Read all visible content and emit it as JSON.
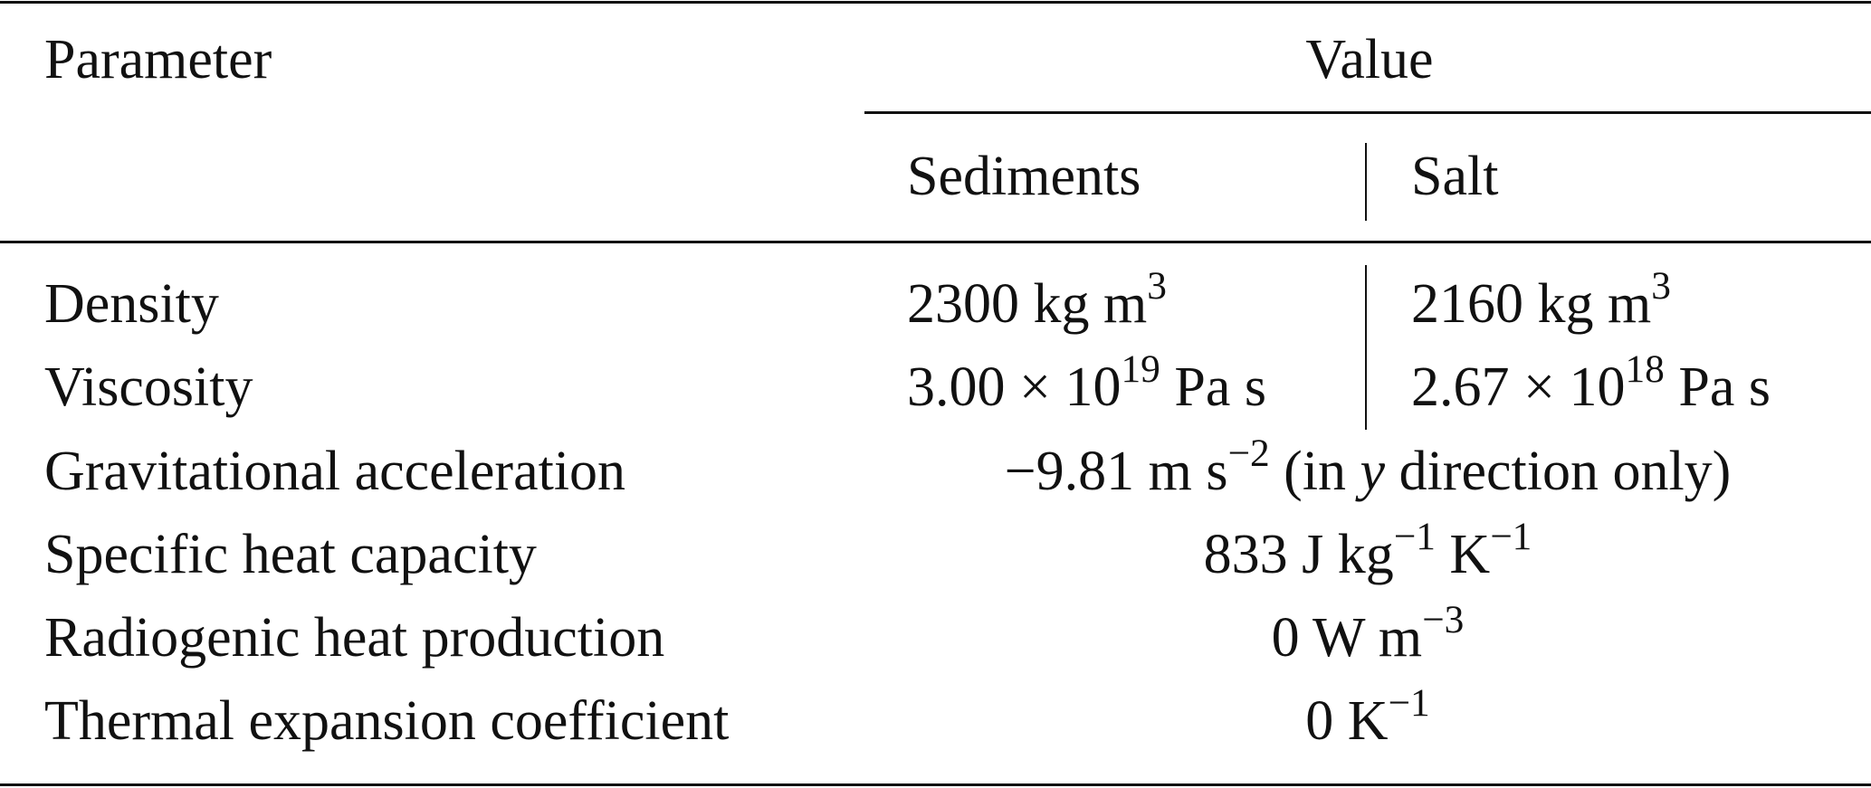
{
  "header": {
    "parameter": "Parameter",
    "value": "Value",
    "sediments": "Sediments",
    "salt": "Salt"
  },
  "rows": [
    {
      "parameter": "Density",
      "sediments": [
        {
          "t": "2300 kg m"
        },
        {
          "sup": "3"
        }
      ],
      "salt": [
        {
          "t": "2160 kg m"
        },
        {
          "sup": "3"
        }
      ]
    },
    {
      "parameter": "Viscosity",
      "sediments": [
        {
          "t": "3.00 × 10"
        },
        {
          "sup": "19"
        },
        {
          "t": " Pa s"
        }
      ],
      "salt": [
        {
          "t": "2.67 × 10"
        },
        {
          "sup": "18"
        },
        {
          "t": " Pa s"
        }
      ]
    },
    {
      "parameter": "Gravitational acceleration",
      "value": [
        {
          "t": "−9.81 m s"
        },
        {
          "sup": "−2"
        },
        {
          "t": " (in "
        },
        {
          "i": "y"
        },
        {
          "t": " direction only)"
        }
      ]
    },
    {
      "parameter": "Specific heat capacity",
      "value": [
        {
          "t": "833 J kg"
        },
        {
          "sup": "−1"
        },
        {
          "t": " K"
        },
        {
          "sup": "−1"
        }
      ]
    },
    {
      "parameter": "Radiogenic heat production",
      "value": [
        {
          "t": "0 W m"
        },
        {
          "sup": "−3"
        }
      ]
    },
    {
      "parameter": "Thermal expansion coefficient",
      "value": [
        {
          "t": "0 K"
        },
        {
          "sup": "−1"
        }
      ]
    }
  ]
}
